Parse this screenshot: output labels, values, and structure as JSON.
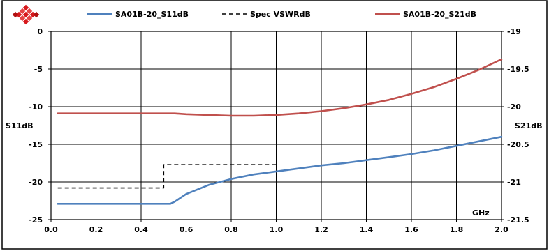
{
  "chart_data": {
    "type": "line",
    "xlabel": "GHz",
    "ylabel_left": "S11dB",
    "ylabel_right": "S21dB",
    "xlim": [
      0.0,
      2.0
    ],
    "ylim_left": [
      -25,
      0
    ],
    "ylim_right": [
      -21.5,
      -19
    ],
    "x_ticks": [
      "0.0",
      "0.2",
      "0.4",
      "0.6",
      "0.8",
      "1.0",
      "1.2",
      "1.4",
      "1.6",
      "1.8",
      "2.0"
    ],
    "y_ticks_left": [
      "0",
      "-5",
      "-10",
      "-15",
      "-20",
      "-25"
    ],
    "y_ticks_right": [
      "-19",
      "-19.5",
      "-20",
      "-20.5",
      "-21",
      "-21.5"
    ],
    "grid": true,
    "legend_position": "top",
    "series": [
      {
        "name": "SA01B-20_S11dB",
        "axis": "left",
        "color": "#4f81bd",
        "style": "solid",
        "x": [
          0.03,
          0.1,
          0.2,
          0.3,
          0.4,
          0.45,
          0.5,
          0.53,
          0.55,
          0.6,
          0.7,
          0.8,
          0.9,
          1.0,
          1.1,
          1.2,
          1.3,
          1.4,
          1.5,
          1.6,
          1.7,
          1.8,
          1.9,
          2.0
        ],
        "y": [
          -22.9,
          -22.9,
          -22.9,
          -22.9,
          -22.9,
          -22.9,
          -22.9,
          -22.9,
          -22.6,
          -21.6,
          -20.4,
          -19.6,
          -19.0,
          -18.6,
          -18.2,
          -17.8,
          -17.5,
          -17.1,
          -16.7,
          -16.3,
          -15.8,
          -15.2,
          -14.6,
          -14.0
        ]
      },
      {
        "name": "Spec VSWRdB",
        "axis": "left",
        "color": "#000000",
        "style": "dashed",
        "x": [
          0.03,
          0.5,
          0.5,
          1.0
        ],
        "y": [
          -20.8,
          -20.8,
          -17.7,
          -17.7
        ]
      },
      {
        "name": "SA01B-20_S21dB",
        "axis": "right",
        "color": "#c0504d",
        "style": "solid",
        "x": [
          0.03,
          0.1,
          0.2,
          0.3,
          0.4,
          0.5,
          0.55,
          0.6,
          0.7,
          0.8,
          0.9,
          1.0,
          1.1,
          1.2,
          1.3,
          1.4,
          1.5,
          1.6,
          1.7,
          1.8,
          1.9,
          2.0
        ],
        "y": [
          -20.09,
          -20.09,
          -20.09,
          -20.09,
          -20.09,
          -20.09,
          -20.09,
          -20.1,
          -20.11,
          -20.12,
          -20.12,
          -20.11,
          -20.09,
          -20.06,
          -20.02,
          -19.97,
          -19.91,
          -19.83,
          -19.74,
          -19.63,
          -19.51,
          -19.37
        ]
      }
    ]
  }
}
